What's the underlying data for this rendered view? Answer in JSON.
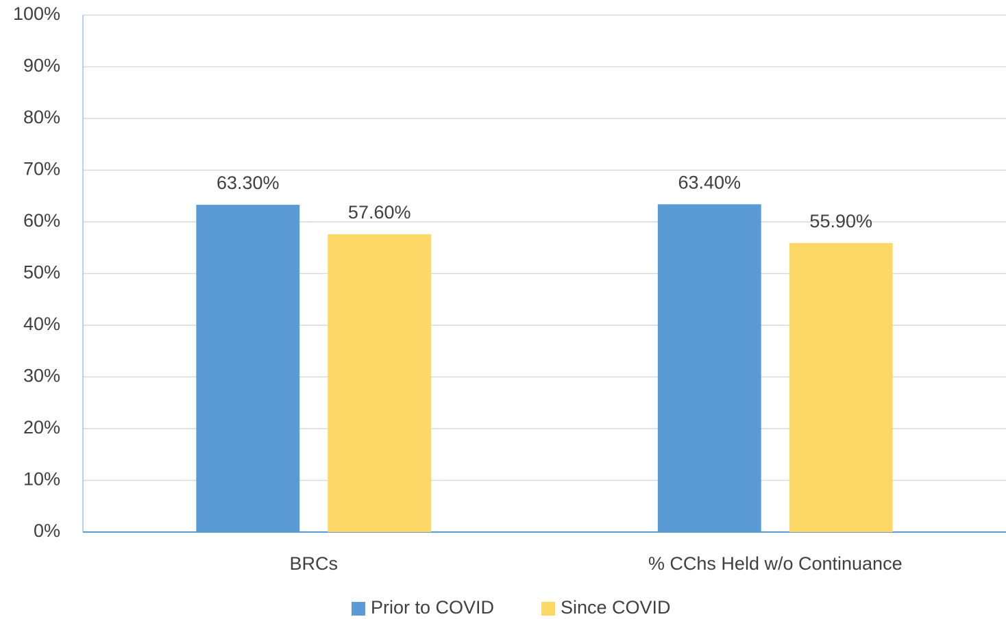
{
  "chart_data": {
    "type": "bar",
    "categories": [
      "BRCs",
      "% CChs Held w/o Continuance"
    ],
    "series": [
      {
        "name": "Prior to COVID",
        "color": "#5b9bd5",
        "values": [
          63.3,
          63.4
        ],
        "value_labels": [
          "63.30%",
          "63.40%"
        ]
      },
      {
        "name": "Since COVID",
        "color": "#fdd866",
        "values": [
          57.6,
          55.9
        ],
        "value_labels": [
          "57.60%",
          "55.90%"
        ]
      }
    ],
    "ylim": [
      0,
      100
    ],
    "yticks": [
      {
        "value": 0,
        "label": "0%"
      },
      {
        "value": 10,
        "label": "10%"
      },
      {
        "value": 20,
        "label": "20%"
      },
      {
        "value": 30,
        "label": "30%"
      },
      {
        "value": 40,
        "label": "40%"
      },
      {
        "value": 50,
        "label": "50%"
      },
      {
        "value": 60,
        "label": "60%"
      },
      {
        "value": 70,
        "label": "70%"
      },
      {
        "value": 80,
        "label": "80%"
      },
      {
        "value": 90,
        "label": "90%"
      },
      {
        "value": 100,
        "label": "100%"
      }
    ],
    "grid": true,
    "legend": "bottom"
  }
}
